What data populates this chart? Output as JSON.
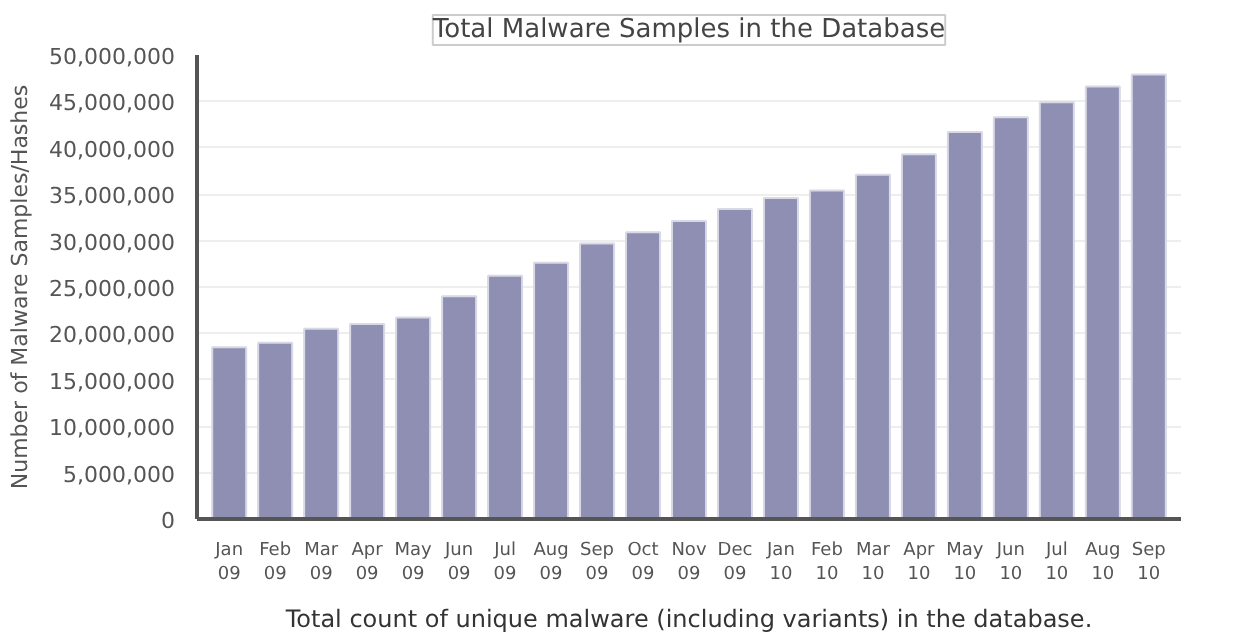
{
  "chart_data": {
    "type": "bar",
    "title": "Total Malware Samples in the Database",
    "ylabel": "Number of Malware Samples/Hashes",
    "categories": [
      "Jan\n09",
      "Feb\n09",
      "Mar\n09",
      "Apr\n09",
      "May\n09",
      "Jun\n09",
      "Jul\n09",
      "Aug\n09",
      "Sep\n09",
      "Oct\n09",
      "Nov\n09",
      "Dec\n09",
      "Jan\n10",
      "Feb\n10",
      "Mar\n10",
      "Apr\n10",
      "May\n10",
      "Jun\n10",
      "Jul\n10",
      "Aug\n10",
      "Sep\n10"
    ],
    "values": [
      18500000,
      19000000,
      20500000,
      21000000,
      21700000,
      24000000,
      26200000,
      27600000,
      29700000,
      30900000,
      32100000,
      33400000,
      34600000,
      35400000,
      37100000,
      39300000,
      41700000,
      43300000,
      44900000,
      46600000,
      47900000
    ],
    "color": "#8f8fb3",
    "ylim": [
      0,
      50000000
    ],
    "yticks": [
      {
        "value": 0,
        "label": "0"
      },
      {
        "value": 5000000,
        "label": "5,000,000"
      },
      {
        "value": 10000000,
        "label": "10,000,000"
      },
      {
        "value": 15000000,
        "label": "15,000,000"
      },
      {
        "value": 20000000,
        "label": "20,000,000"
      },
      {
        "value": 25000000,
        "label": "25,000,000"
      },
      {
        "value": 30000000,
        "label": "30,000,000"
      },
      {
        "value": 35000000,
        "label": "35,000,000"
      },
      {
        "value": 40000000,
        "label": "40,000,000"
      },
      {
        "value": 45000000,
        "label": "45,000,000"
      },
      {
        "value": 50000000,
        "label": "50,000,000"
      }
    ],
    "grid": "y",
    "annotations": [
      "Total count of unique malware (including variants) in the database."
    ]
  }
}
